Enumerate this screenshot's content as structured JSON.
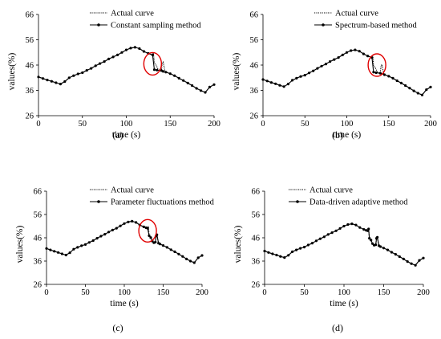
{
  "colors": {
    "curve": "#000000",
    "highlight_circle": "#e00000",
    "axis": "#000000"
  },
  "chart_data": [
    {
      "panel_label": "(a)",
      "type": "line",
      "xlabel": "time (s)",
      "ylabel": "values(%)",
      "xlim": [
        0,
        200
      ],
      "ylim": [
        26,
        66
      ],
      "xticks": [
        0,
        50,
        100,
        150,
        200
      ],
      "yticks": [
        26,
        36,
        46,
        56,
        66
      ],
      "grid": false,
      "legend_position": "top-center",
      "highlight": {
        "x": 130,
        "y": 46.5,
        "shape": "ellipse"
      },
      "series": [
        {
          "name": "Actual curve",
          "style": "dotted",
          "x": [
            0,
            5,
            10,
            15,
            20,
            25,
            30,
            35,
            40,
            45,
            50,
            55,
            60,
            65,
            70,
            75,
            80,
            85,
            90,
            95,
            100,
            105,
            110,
            115,
            120,
            125,
            128,
            130,
            131,
            132,
            134,
            136,
            138,
            140,
            141,
            142,
            144,
            146,
            150,
            155,
            160,
            165,
            170,
            175,
            180,
            185,
            190,
            195,
            200
          ],
          "y": [
            41.3,
            40.7,
            40.1,
            39.6,
            39.0,
            38.5,
            39.5,
            41.0,
            41.8,
            42.5,
            43.0,
            43.9,
            44.7,
            45.7,
            46.6,
            47.4,
            48.4,
            49.2,
            50.0,
            51.0,
            52.0,
            52.7,
            53.0,
            52.5,
            51.4,
            50.6,
            50.2,
            50.0,
            50.8,
            46.8,
            46.0,
            44.5,
            43.8,
            44.0,
            46.8,
            47.2,
            43.6,
            43.2,
            42.6,
            41.8,
            40.8,
            39.9,
            38.9,
            37.9,
            36.8,
            35.9,
            35.2,
            37.3,
            38.3
          ]
        },
        {
          "name": "Constant sampling method",
          "style": "solid-markers",
          "x": [
            0,
            5,
            10,
            15,
            20,
            25,
            30,
            35,
            40,
            45,
            50,
            55,
            60,
            65,
            70,
            75,
            80,
            85,
            90,
            95,
            100,
            105,
            110,
            115,
            120,
            125,
            130,
            132,
            135,
            140,
            142,
            145,
            150,
            155,
            160,
            165,
            170,
            175,
            180,
            185,
            190,
            195,
            200
          ],
          "y": [
            41.3,
            40.7,
            40.1,
            39.6,
            39.0,
            38.5,
            39.5,
            41.0,
            41.8,
            42.5,
            43.0,
            43.9,
            44.7,
            45.7,
            46.6,
            47.4,
            48.4,
            49.2,
            50.0,
            51.0,
            52.0,
            52.7,
            53.0,
            52.5,
            51.4,
            50.6,
            50.0,
            44.2,
            44.0,
            43.8,
            43.5,
            43.2,
            42.6,
            41.8,
            40.8,
            39.9,
            38.9,
            37.9,
            36.8,
            35.9,
            35.2,
            37.3,
            38.3
          ]
        }
      ]
    },
    {
      "panel_label": "(b)",
      "type": "line",
      "xlabel": "time (s)",
      "ylabel": "values(%)",
      "xlim": [
        0,
        200
      ],
      "ylim": [
        26,
        66
      ],
      "xticks": [
        0,
        50,
        100,
        150,
        200
      ],
      "yticks": [
        26,
        36,
        46,
        56,
        66
      ],
      "grid": false,
      "legend_position": "top-center",
      "highlight": {
        "x": 136,
        "y": 46.0,
        "shape": "ellipse"
      },
      "series": [
        {
          "name": "Actual curve",
          "style": "dotted",
          "x": [
            0,
            5,
            10,
            15,
            20,
            25,
            30,
            35,
            40,
            45,
            50,
            55,
            60,
            65,
            70,
            75,
            80,
            85,
            90,
            95,
            100,
            105,
            110,
            115,
            120,
            125,
            128,
            130,
            131,
            132,
            134,
            136,
            138,
            140,
            141,
            142,
            144,
            146,
            150,
            155,
            160,
            165,
            170,
            175,
            180,
            185,
            190,
            195,
            200
          ],
          "y": [
            40.3,
            39.7,
            39.1,
            38.6,
            38.0,
            37.5,
            38.5,
            40.0,
            40.8,
            41.5,
            42.0,
            42.9,
            43.7,
            44.7,
            45.6,
            46.4,
            47.4,
            48.2,
            49.0,
            50.0,
            51.0,
            51.7,
            52.0,
            51.5,
            50.4,
            49.6,
            49.2,
            49.0,
            49.8,
            45.8,
            45.0,
            43.5,
            42.8,
            43.0,
            45.8,
            46.2,
            42.6,
            42.2,
            41.6,
            40.8,
            39.8,
            38.9,
            37.9,
            36.9,
            35.8,
            34.9,
            34.2,
            36.3,
            37.3
          ]
        },
        {
          "name": "Spectrum-based method",
          "style": "solid-markers",
          "x": [
            0,
            5,
            10,
            15,
            20,
            25,
            30,
            35,
            40,
            45,
            50,
            55,
            60,
            65,
            70,
            75,
            80,
            85,
            90,
            95,
            100,
            105,
            110,
            115,
            120,
            125,
            130,
            132,
            135,
            140,
            145,
            150,
            155,
            160,
            165,
            170,
            175,
            180,
            185,
            190,
            195,
            200
          ],
          "y": [
            40.3,
            39.7,
            39.1,
            38.6,
            38.0,
            37.5,
            38.5,
            40.0,
            40.8,
            41.5,
            42.0,
            42.9,
            43.7,
            44.7,
            45.6,
            46.4,
            47.4,
            48.2,
            49.0,
            50.0,
            51.0,
            51.7,
            52.0,
            51.5,
            50.4,
            49.6,
            49.0,
            43.2,
            43.0,
            42.8,
            42.2,
            41.6,
            40.8,
            39.8,
            38.9,
            37.9,
            36.9,
            35.8,
            34.9,
            34.2,
            36.3,
            37.3
          ]
        }
      ]
    },
    {
      "panel_label": "(c)",
      "type": "line",
      "xlabel": "time (s)",
      "ylabel": "values(%)",
      "xlim": [
        0,
        200
      ],
      "ylim": [
        26,
        66
      ],
      "xticks": [
        0,
        50,
        100,
        150,
        200
      ],
      "yticks": [
        26,
        36,
        46,
        56,
        66
      ],
      "grid": false,
      "legend_position": "top-center",
      "highlight": {
        "x": 130,
        "y": 49.0,
        "shape": "ellipse"
      },
      "series": [
        {
          "name": "Actual curve",
          "style": "dotted",
          "x": [
            0,
            5,
            10,
            15,
            20,
            25,
            30,
            35,
            40,
            45,
            50,
            55,
            60,
            65,
            70,
            75,
            80,
            85,
            90,
            95,
            100,
            105,
            110,
            115,
            120,
            125,
            128,
            130,
            131,
            132,
            134,
            136,
            138,
            140,
            141,
            142,
            144,
            146,
            150,
            155,
            160,
            165,
            170,
            175,
            180,
            185,
            190,
            195,
            200
          ],
          "y": [
            41.4,
            40.8,
            40.2,
            39.7,
            39.1,
            38.6,
            39.6,
            41.1,
            41.9,
            42.6,
            43.1,
            44.0,
            44.8,
            45.8,
            46.7,
            47.5,
            48.5,
            49.3,
            50.1,
            51.1,
            52.1,
            52.8,
            53.1,
            52.6,
            51.5,
            50.7,
            50.3,
            50.1,
            50.9,
            46.9,
            46.1,
            44.6,
            43.9,
            44.1,
            46.9,
            47.3,
            43.7,
            43.3,
            42.7,
            41.9,
            40.9,
            40.0,
            39.0,
            38.0,
            36.9,
            36.0,
            35.3,
            37.4,
            38.4
          ]
        },
        {
          "name": "Parameter fluctuations method",
          "style": "solid-markers",
          "x": [
            0,
            5,
            10,
            15,
            20,
            25,
            30,
            35,
            40,
            45,
            50,
            55,
            60,
            65,
            70,
            75,
            80,
            85,
            90,
            95,
            100,
            105,
            110,
            115,
            120,
            125,
            128,
            130,
            132,
            134,
            136,
            138,
            140,
            141,
            142,
            144,
            146,
            150,
            155,
            160,
            165,
            170,
            175,
            180,
            185,
            190,
            195,
            200
          ],
          "y": [
            41.4,
            40.8,
            40.2,
            39.7,
            39.1,
            38.6,
            39.6,
            41.1,
            41.9,
            42.6,
            43.1,
            44.0,
            44.8,
            45.8,
            46.7,
            47.5,
            48.5,
            49.3,
            50.1,
            51.1,
            52.1,
            52.8,
            53.1,
            52.6,
            51.5,
            50.7,
            50.3,
            50.1,
            46.9,
            46.1,
            44.6,
            43.9,
            44.1,
            46.9,
            47.3,
            43.7,
            43.3,
            42.7,
            41.9,
            40.9,
            40.0,
            39.0,
            38.0,
            36.9,
            36.0,
            35.3,
            37.4,
            38.4
          ]
        }
      ]
    },
    {
      "panel_label": "(d)",
      "type": "line",
      "xlabel": "time (s)",
      "ylabel": "values(%)",
      "xlim": [
        0,
        200
      ],
      "ylim": [
        26,
        66
      ],
      "xticks": [
        0,
        50,
        100,
        150,
        200
      ],
      "yticks": [
        26,
        36,
        46,
        56,
        66
      ],
      "grid": false,
      "legend_position": "top-center",
      "highlight": null,
      "series": [
        {
          "name": "Actual curve",
          "style": "dotted",
          "x": [
            0,
            5,
            10,
            15,
            20,
            25,
            30,
            35,
            40,
            45,
            50,
            55,
            60,
            65,
            70,
            75,
            80,
            85,
            90,
            95,
            100,
            105,
            110,
            115,
            120,
            125,
            128,
            130,
            131,
            132,
            134,
            136,
            138,
            140,
            141,
            142,
            144,
            146,
            150,
            155,
            160,
            165,
            170,
            175,
            180,
            185,
            190,
            195,
            200
          ],
          "y": [
            40.3,
            39.7,
            39.1,
            38.6,
            38.0,
            37.5,
            38.5,
            40.0,
            40.8,
            41.5,
            42.0,
            42.9,
            43.7,
            44.7,
            45.6,
            46.4,
            47.4,
            48.2,
            49.0,
            50.0,
            51.0,
            51.7,
            52.0,
            51.5,
            50.4,
            49.6,
            49.2,
            49.0,
            49.8,
            45.8,
            45.0,
            43.5,
            42.8,
            43.0,
            45.8,
            46.2,
            42.6,
            42.2,
            41.6,
            40.8,
            39.8,
            38.9,
            37.9,
            36.9,
            35.8,
            34.9,
            34.2,
            36.3,
            37.3
          ]
        },
        {
          "name": "Data-driven adaptive method",
          "style": "solid-markers",
          "x": [
            0,
            5,
            10,
            15,
            20,
            25,
            30,
            35,
            40,
            45,
            50,
            55,
            60,
            65,
            70,
            75,
            80,
            85,
            90,
            95,
            100,
            105,
            110,
            115,
            120,
            125,
            128,
            130,
            131,
            132,
            134,
            136,
            138,
            140,
            141,
            142,
            144,
            146,
            150,
            155,
            160,
            165,
            170,
            175,
            180,
            185,
            190,
            195,
            200
          ],
          "y": [
            40.3,
            39.7,
            39.1,
            38.6,
            38.0,
            37.5,
            38.5,
            40.0,
            40.8,
            41.5,
            42.0,
            42.9,
            43.7,
            44.7,
            45.6,
            46.4,
            47.4,
            48.2,
            49.0,
            50.0,
            51.0,
            51.7,
            52.0,
            51.5,
            50.4,
            49.6,
            49.2,
            49.0,
            49.8,
            45.8,
            45.0,
            43.5,
            42.8,
            43.0,
            45.8,
            46.2,
            42.6,
            42.2,
            41.6,
            40.8,
            39.8,
            38.9,
            37.9,
            36.9,
            35.8,
            34.9,
            34.2,
            36.3,
            37.3
          ]
        }
      ]
    }
  ]
}
